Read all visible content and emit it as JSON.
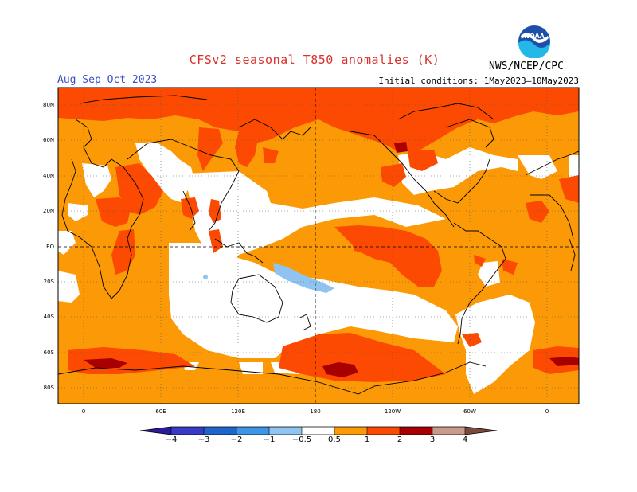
{
  "title": "CFSv2 seasonal T850 anomalies (K)",
  "period": "Aug–Sep–Oct 2023",
  "initial_conditions": "Initial conditions: 1May2023–10May2023",
  "agency": "NWS/NCEP/CPC",
  "logo": {
    "icon": "noaa-logo-icon",
    "text": "NOAA"
  },
  "lat_ticks": [
    "80N",
    "60N",
    "40N",
    "20N",
    "EQ",
    "20S",
    "40S",
    "60S",
    "80S"
  ],
  "lon_ticks": [
    "0",
    "60E",
    "120E",
    "180",
    "120W",
    "60W",
    "0"
  ],
  "colorbar": {
    "labels": [
      "−4",
      "−3",
      "−2",
      "−1",
      "−0.5",
      "0.5",
      "1",
      "2",
      "3",
      "4"
    ],
    "colors": {
      "lt_-4": "#2a1a9c",
      "-4_-3": "#3a3ac8",
      "-3_-2": "#1f66cc",
      "-2_-1": "#3b96e8",
      "-1_-0.5": "#8fc3f0",
      "-0.5_0.5": "#ffffff",
      "0.5_1": "#fb9a06",
      "1_2": "#fc4a02",
      "2_3": "#a80000",
      "3_4": "#c99a8c",
      "gt_4": "#7a4a3a"
    }
  }
}
